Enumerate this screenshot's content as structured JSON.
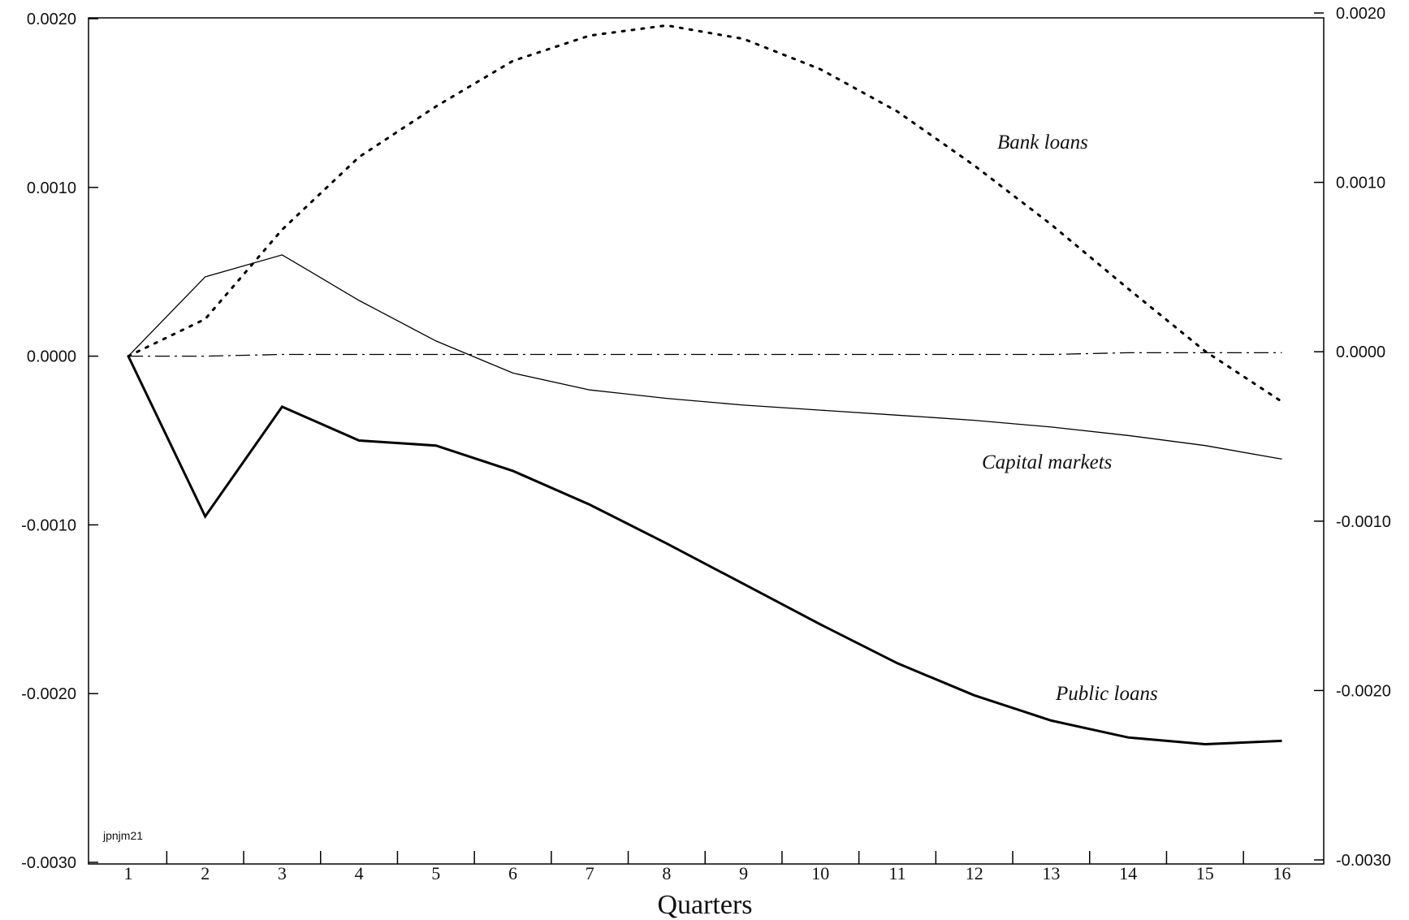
{
  "chart_data": {
    "type": "line",
    "xlabel": "Quarters",
    "ylabel": "",
    "categories": [
      "1",
      "2",
      "3",
      "4",
      "5",
      "6",
      "7",
      "8",
      "9",
      "10",
      "11",
      "12",
      "13",
      "14",
      "15",
      "16"
    ],
    "xlim": [
      1,
      16
    ],
    "ylim": [
      -0.003,
      0.002
    ],
    "y_ticks_left": [
      "0.0020",
      "0.0010",
      "0.0000",
      "-0.0010",
      "-0.0020",
      "-0.0030"
    ],
    "y_ticks_right": [
      "0.0020",
      "0.0010",
      "0.0000",
      "-0.0010",
      "-0.0020",
      "-0.0030"
    ],
    "y_tick_values": [
      0.002,
      0.001,
      0.0,
      -0.001,
      -0.002,
      -0.003
    ],
    "grid": false,
    "legend": "none",
    "series": [
      {
        "name": "Bank loans",
        "style": "dotted",
        "values": [
          0.0,
          0.00022,
          0.00075,
          0.00118,
          0.00148,
          0.00175,
          0.0019,
          0.00196,
          0.00188,
          0.0017,
          0.00145,
          0.00113,
          0.00078,
          0.0004,
          3e-05,
          -0.00027
        ]
      },
      {
        "name": "Capital markets",
        "style": "thin",
        "values": [
          0.0,
          0.00047,
          0.0006,
          0.00033,
          9e-05,
          -0.0001,
          -0.0002,
          -0.00025,
          -0.00029,
          -0.00032,
          -0.00035,
          -0.00038,
          -0.00042,
          -0.00047,
          -0.00053,
          -0.00061
        ]
      },
      {
        "name": "Public loans",
        "style": "thick",
        "values": [
          0.0,
          -0.00095,
          -0.0003,
          -0.0005,
          -0.00053,
          -0.00068,
          -0.00088,
          -0.00111,
          -0.00135,
          -0.00159,
          -0.00182,
          -0.00201,
          -0.00216,
          -0.00226,
          -0.0023,
          -0.00228
        ]
      },
      {
        "name": "",
        "style": "dash-dot",
        "values": [
          0.0,
          0.0,
          1e-05,
          1e-05,
          1e-05,
          1e-05,
          1e-05,
          1e-05,
          1e-05,
          1e-05,
          1e-05,
          1e-05,
          1e-05,
          2e-05,
          2e-05,
          2e-05
        ]
      }
    ],
    "annotations": {
      "bank_loans": "Bank loans",
      "capital_markets": "Capital markets",
      "public_loans": "Public loans",
      "watermark": "jpnjm21"
    }
  }
}
